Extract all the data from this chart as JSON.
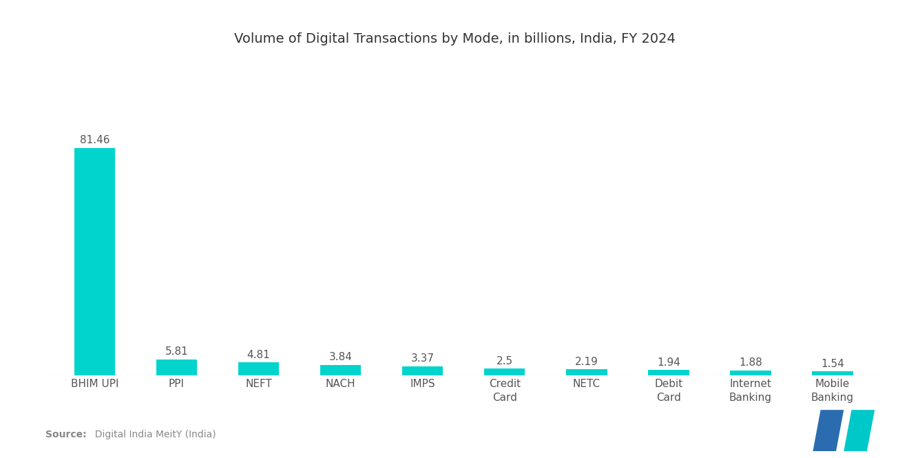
{
  "title": "Volume of Digital Transactions by Mode, in billions, India, FY 2024",
  "categories": [
    "BHIM UPI",
    "PPI",
    "NEFT",
    "NACH",
    "IMPS",
    "Credit\nCard",
    "NETC",
    "Debit\nCard",
    "Internet\nBanking",
    "Mobile\nBanking"
  ],
  "values": [
    81.46,
    5.81,
    4.81,
    3.84,
    3.37,
    2.5,
    2.19,
    1.94,
    1.88,
    1.54
  ],
  "bar_color": "#00D4CC",
  "background_color": "#ffffff",
  "title_fontsize": 14,
  "label_fontsize": 11,
  "value_fontsize": 11,
  "source_bold": "Source:",
  "source_normal": "  Digital India MeitY (India)",
  "ylim": [
    0,
    95
  ],
  "logo_blue": "#2B6CB0",
  "logo_teal": "#00C8C8"
}
